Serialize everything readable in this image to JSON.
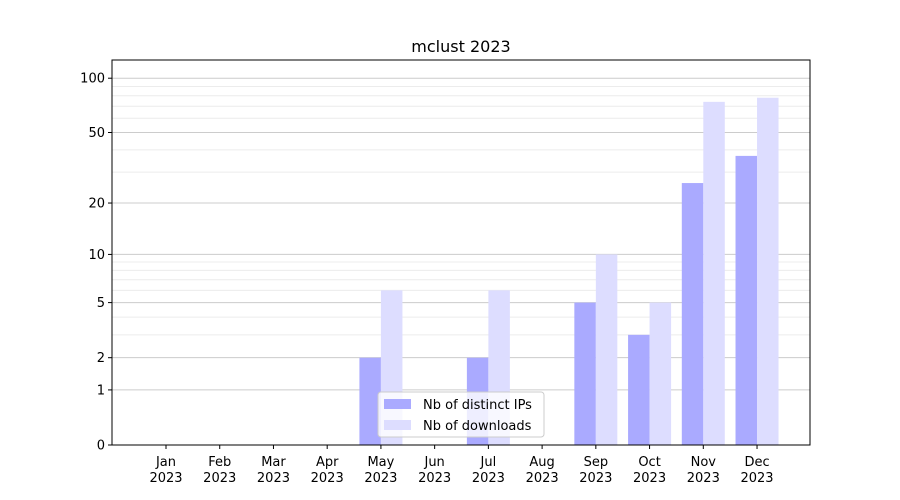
{
  "chart_data": {
    "type": "bar",
    "title": "mclust 2023",
    "xlabel": "",
    "ylabel": "",
    "y_scale": "log10(1+y)",
    "ylim": [
      0,
      126
    ],
    "y_ticks": [
      0,
      1,
      2,
      5,
      10,
      20,
      50,
      100
    ],
    "y_tick_labels": [
      "0",
      "1",
      "2",
      "5",
      "10",
      "20",
      "50",
      "100"
    ],
    "y_minor_ticks": [
      3,
      4,
      6,
      7,
      8,
      9,
      30,
      40,
      60,
      70,
      80,
      90
    ],
    "grid": true,
    "legend_placement": "lower-center",
    "categories": [
      "Jan\n2023",
      "Feb\n2023",
      "Mar\n2023",
      "Apr\n2023",
      "May\n2023",
      "Jun\n2023",
      "Jul\n2023",
      "Aug\n2023",
      "Sep\n2023",
      "Oct\n2023",
      "Nov\n2023",
      "Dec\n2023"
    ],
    "category_month": [
      "Jan",
      "Feb",
      "Mar",
      "Apr",
      "May",
      "Jun",
      "Jul",
      "Aug",
      "Sep",
      "Oct",
      "Nov",
      "Dec"
    ],
    "category_year": "2023",
    "series": [
      {
        "name": "Nb of distinct IPs",
        "color": "#aaaaff",
        "values": [
          0,
          0,
          0,
          0,
          2,
          0,
          2,
          0,
          5,
          3,
          26,
          37
        ]
      },
      {
        "name": "Nb of downloads",
        "color": "#ddddff",
        "values": [
          0,
          0,
          0,
          0,
          6,
          0,
          6,
          0,
          10,
          5,
          74,
          78
        ]
      }
    ]
  }
}
